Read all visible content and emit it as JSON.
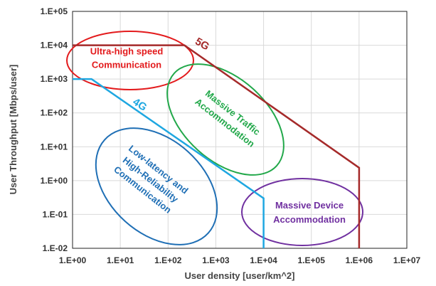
{
  "chart_data": {
    "type": "line",
    "x_scale": "log",
    "y_scale": "log",
    "xlabel": "User density [user/km^2]",
    "ylabel": "User Throughput [Mbps/user]",
    "xlim": [
      1,
      10000000
    ],
    "ylim": [
      0.01,
      100000
    ],
    "grid": true,
    "x_ticks": [
      "1.E+00",
      "1.E+01",
      "1.E+02",
      "1.E+03",
      "1.E+04",
      "1.E+05",
      "1.E+06",
      "1.E+07"
    ],
    "y_ticks": [
      "1.E+05",
      "1.E+04",
      "1.E+03",
      "1.E+02",
      "1.E+01",
      "1.E+00",
      "1.E-01",
      "1.E-02"
    ],
    "series": [
      {
        "name": "5G",
        "color": "#a52a2a",
        "x": [
          1,
          220,
          1000000,
          1000000
        ],
        "y": [
          10000,
          10000,
          2.4,
          0.01
        ]
      },
      {
        "name": "4G",
        "color": "#1ea7e1",
        "x": [
          1,
          2.5,
          10000,
          10000
        ],
        "y": [
          1000,
          1000,
          0.3,
          0.01
        ]
      }
    ],
    "annotations": [
      {
        "id": "ultra",
        "lines": [
          "Ultra-high speed",
          "Communication"
        ],
        "color": "#e31a1c"
      },
      {
        "id": "traffic",
        "lines": [
          "Massive Traffic",
          "Accommodation"
        ],
        "color": "#22a84a"
      },
      {
        "id": "lowlat",
        "lines": [
          "Low-latency and",
          "High-Reliability",
          "Communication"
        ],
        "color": "#1f6fb5"
      },
      {
        "id": "device",
        "lines": [
          "Massive Device",
          "Accommodation"
        ],
        "color": "#7030a0"
      }
    ]
  }
}
